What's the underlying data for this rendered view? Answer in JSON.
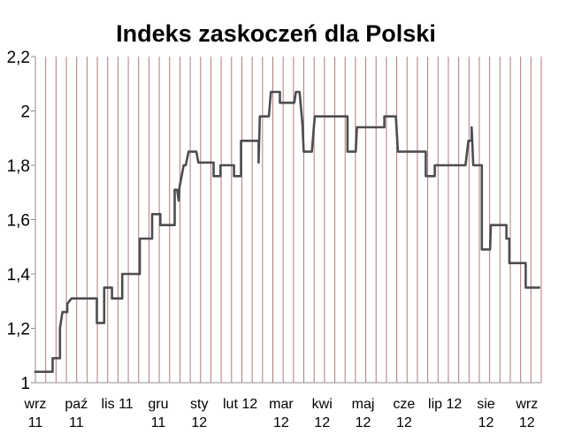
{
  "chart_data": {
    "type": "line",
    "title": "Indeks zaskoczeń dla Polski",
    "xlabel": "",
    "ylabel": "",
    "ylim": [
      1,
      2.2
    ],
    "y_ticks": [
      "1",
      "1,2",
      "1,4",
      "1,6",
      "1,8",
      "2",
      "2,2"
    ],
    "x_tick_labels": [
      [
        "wrz",
        "11"
      ],
      [
        "paź",
        "11"
      ],
      [
        "lis 11",
        ""
      ],
      [
        "gru",
        "11"
      ],
      [
        "sty",
        "12"
      ],
      [
        "lut 12",
        ""
      ],
      [
        "mar",
        "12"
      ],
      [
        "kwi",
        "12"
      ],
      [
        "maj",
        "12"
      ],
      [
        "cze",
        "12"
      ],
      [
        "lip 12",
        ""
      ],
      [
        "sie",
        "12"
      ],
      [
        "wrz",
        "12"
      ]
    ],
    "grid": "vertical",
    "legend": "none",
    "colors": {
      "line": "#4d4d4d",
      "grid": "#b27a7a",
      "axis": "#8c8c8c"
    },
    "x_range": [
      0,
      12.35
    ],
    "series": [
      {
        "values": [
          [
            0.0,
            1.04
          ],
          [
            0.42,
            1.04
          ],
          [
            0.42,
            1.09
          ],
          [
            0.6,
            1.09
          ],
          [
            0.6,
            1.2
          ],
          [
            0.66,
            1.26
          ],
          [
            0.78,
            1.26
          ],
          [
            0.78,
            1.29
          ],
          [
            0.88,
            1.31
          ],
          [
            1.5,
            1.31
          ],
          [
            1.5,
            1.22
          ],
          [
            1.68,
            1.22
          ],
          [
            1.68,
            1.35
          ],
          [
            1.87,
            1.35
          ],
          [
            1.87,
            1.31
          ],
          [
            2.12,
            1.31
          ],
          [
            2.12,
            1.4
          ],
          [
            2.55,
            1.4
          ],
          [
            2.55,
            1.53
          ],
          [
            2.85,
            1.53
          ],
          [
            2.85,
            1.62
          ],
          [
            3.05,
            1.62
          ],
          [
            3.05,
            1.58
          ],
          [
            3.4,
            1.58
          ],
          [
            3.4,
            1.71
          ],
          [
            3.46,
            1.71
          ],
          [
            3.5,
            1.67
          ],
          [
            3.52,
            1.72
          ],
          [
            3.62,
            1.8
          ],
          [
            3.67,
            1.8
          ],
          [
            3.74,
            1.85
          ],
          [
            3.93,
            1.85
          ],
          [
            3.98,
            1.81
          ],
          [
            4.35,
            1.81
          ],
          [
            4.35,
            1.76
          ],
          [
            4.52,
            1.76
          ],
          [
            4.52,
            1.8
          ],
          [
            4.85,
            1.8
          ],
          [
            4.85,
            1.76
          ],
          [
            5.02,
            1.76
          ],
          [
            5.02,
            1.89
          ],
          [
            5.45,
            1.89
          ],
          [
            5.45,
            1.81
          ],
          [
            5.48,
            1.98
          ],
          [
            5.7,
            1.98
          ],
          [
            5.75,
            2.07
          ],
          [
            5.97,
            2.07
          ],
          [
            5.97,
            2.03
          ],
          [
            6.32,
            2.03
          ],
          [
            6.36,
            2.07
          ],
          [
            6.45,
            2.07
          ],
          [
            6.52,
            1.95
          ],
          [
            6.55,
            1.85
          ],
          [
            6.75,
            1.85
          ],
          [
            6.82,
            1.98
          ],
          [
            7.62,
            1.98
          ],
          [
            7.62,
            1.85
          ],
          [
            7.82,
            1.85
          ],
          [
            7.85,
            1.94
          ],
          [
            8.52,
            1.94
          ],
          [
            8.52,
            1.98
          ],
          [
            8.8,
            1.98
          ],
          [
            8.85,
            1.85
          ],
          [
            9.53,
            1.85
          ],
          [
            9.53,
            1.76
          ],
          [
            9.75,
            1.76
          ],
          [
            9.75,
            1.8
          ],
          [
            10.5,
            1.8
          ],
          [
            10.57,
            1.89
          ],
          [
            10.65,
            1.89
          ],
          [
            10.65,
            1.94
          ],
          [
            10.69,
            1.8
          ],
          [
            10.9,
            1.8
          ],
          [
            10.9,
            1.49
          ],
          [
            11.1,
            1.49
          ],
          [
            11.12,
            1.58
          ],
          [
            11.5,
            1.58
          ],
          [
            11.5,
            1.53
          ],
          [
            11.57,
            1.53
          ],
          [
            11.57,
            1.44
          ],
          [
            11.97,
            1.44
          ],
          [
            11.97,
            1.35
          ],
          [
            12.3,
            1.35
          ]
        ]
      }
    ]
  }
}
